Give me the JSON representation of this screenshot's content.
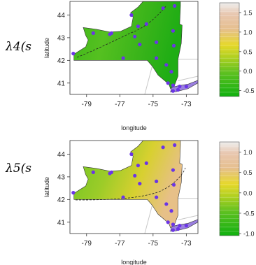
{
  "chart_data": [
    {
      "type": "heatmap",
      "panel_label": "λ4(s",
      "xlabel": "longitude",
      "ylabel": "latitude",
      "x_ticks": [
        -79,
        -77,
        -75,
        -73
      ],
      "y_ticks": [
        41,
        42,
        43,
        44
      ],
      "xlim": [
        -80.0,
        -72.3
      ],
      "ylim": [
        40.5,
        44.6
      ],
      "colorbar": {
        "ticks": [
          "1.5",
          "1.0",
          "0.5",
          "0.0",
          "-0.5"
        ],
        "tick_values": [
          1.5,
          1.0,
          0.5,
          0.0,
          -0.5
        ],
        "range": [
          -0.65,
          1.75
        ]
      },
      "stations": [
        [
          -79.8,
          42.3
        ],
        [
          -78.6,
          43.2
        ],
        [
          -77.5,
          43.2
        ],
        [
          -76.1,
          43.05
        ],
        [
          -75.9,
          43.5
        ],
        [
          -75.4,
          43.6
        ],
        [
          -74.4,
          44.3
        ],
        [
          -73.7,
          44.4
        ],
        [
          -73.8,
          43.3
        ],
        [
          -75.8,
          42.7
        ],
        [
          -74.8,
          42.8
        ],
        [
          -73.75,
          42.65
        ],
        [
          -76.8,
          42.1
        ],
        [
          -74.8,
          42.1
        ],
        [
          -74.2,
          41.8
        ],
        [
          -73.9,
          41.5
        ],
        [
          -73.8,
          40.9
        ],
        [
          -73.4,
          40.85
        ],
        [
          -73.0,
          40.85
        ],
        [
          -73.8,
          40.65
        ],
        [
          -73.5,
          40.7
        ],
        [
          -76.3,
          44.0
        ],
        [
          -77.6,
          43.15
        ],
        [
          -74.1,
          41.0
        ]
      ]
    },
    {
      "type": "heatmap",
      "panel_label": "λ5(s",
      "xlabel": "longitude",
      "ylabel": "latitude",
      "x_ticks": [
        -79,
        -77,
        -75,
        -73
      ],
      "y_ticks": [
        41,
        42,
        43,
        44
      ],
      "xlim": [
        -80.0,
        -72.3
      ],
      "ylim": [
        40.5,
        44.6
      ],
      "colorbar": {
        "ticks": [
          "1.0",
          "0.5",
          "0.0",
          "-0.5",
          "-1.0"
        ],
        "tick_values": [
          1.0,
          0.5,
          0.0,
          -0.5,
          -1.0
        ],
        "range": [
          -1.05,
          1.25
        ]
      },
      "stations": [
        [
          -79.8,
          42.3
        ],
        [
          -78.6,
          43.2
        ],
        [
          -77.5,
          43.2
        ],
        [
          -76.1,
          43.05
        ],
        [
          -75.9,
          43.5
        ],
        [
          -75.4,
          43.6
        ],
        [
          -74.4,
          44.3
        ],
        [
          -73.7,
          44.4
        ],
        [
          -73.8,
          43.3
        ],
        [
          -75.8,
          42.7
        ],
        [
          -74.8,
          42.8
        ],
        [
          -73.75,
          42.65
        ],
        [
          -76.8,
          42.1
        ],
        [
          -74.8,
          42.1
        ],
        [
          -74.2,
          41.8
        ],
        [
          -73.9,
          41.5
        ],
        [
          -73.8,
          40.9
        ],
        [
          -73.4,
          40.85
        ],
        [
          -73.0,
          40.85
        ],
        [
          -73.8,
          40.65
        ],
        [
          -73.5,
          40.7
        ],
        [
          -76.3,
          44.0
        ],
        [
          -77.6,
          43.15
        ],
        [
          -74.1,
          41.0
        ]
      ]
    }
  ],
  "colors": {
    "green_dark": "#10b010",
    "green_mid": "#5cc020",
    "yellow_green": "#b0d020",
    "yellow": "#e6d82a",
    "tan": "#e6bf8e",
    "peach": "#e8c7b0",
    "pale": "#eeeeee",
    "station": "#6b35e6",
    "land_gray": "#c8c8c8"
  }
}
